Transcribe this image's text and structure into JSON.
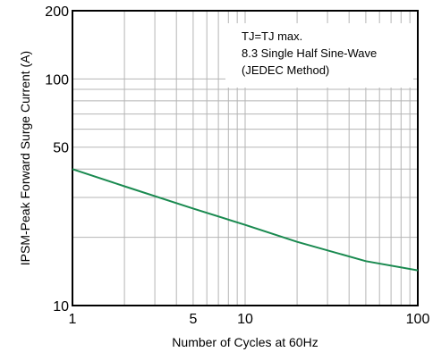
{
  "chart_data": {
    "type": "line",
    "xlabel": "Number of Cycles at 60Hz",
    "ylabel": "IPSM-Peak Forward Surge Current (A)",
    "x_scale": "log",
    "y_scale": "log",
    "xlim": [
      1,
      100
    ],
    "ylim": [
      10,
      200
    ],
    "x_ticks": [
      1,
      5,
      10,
      100
    ],
    "x_tick_labels": [
      "1",
      "5",
      "10",
      "100"
    ],
    "y_ticks": [
      10,
      50,
      100,
      200
    ],
    "y_tick_labels": [
      "10",
      "50",
      "100",
      "200"
    ],
    "grid": true,
    "series": [
      {
        "color": "#1a8a50",
        "x": [
          1,
          2,
          5,
          10,
          20,
          50,
          100
        ],
        "y": [
          40,
          33.6,
          26.8,
          22.7,
          19.1,
          15.7,
          14.3
        ]
      }
    ],
    "annotation": [
      "TJ=TJ max.",
      "8.3 Single Half Sine-Wave",
      "(JEDEC Method)"
    ]
  }
}
